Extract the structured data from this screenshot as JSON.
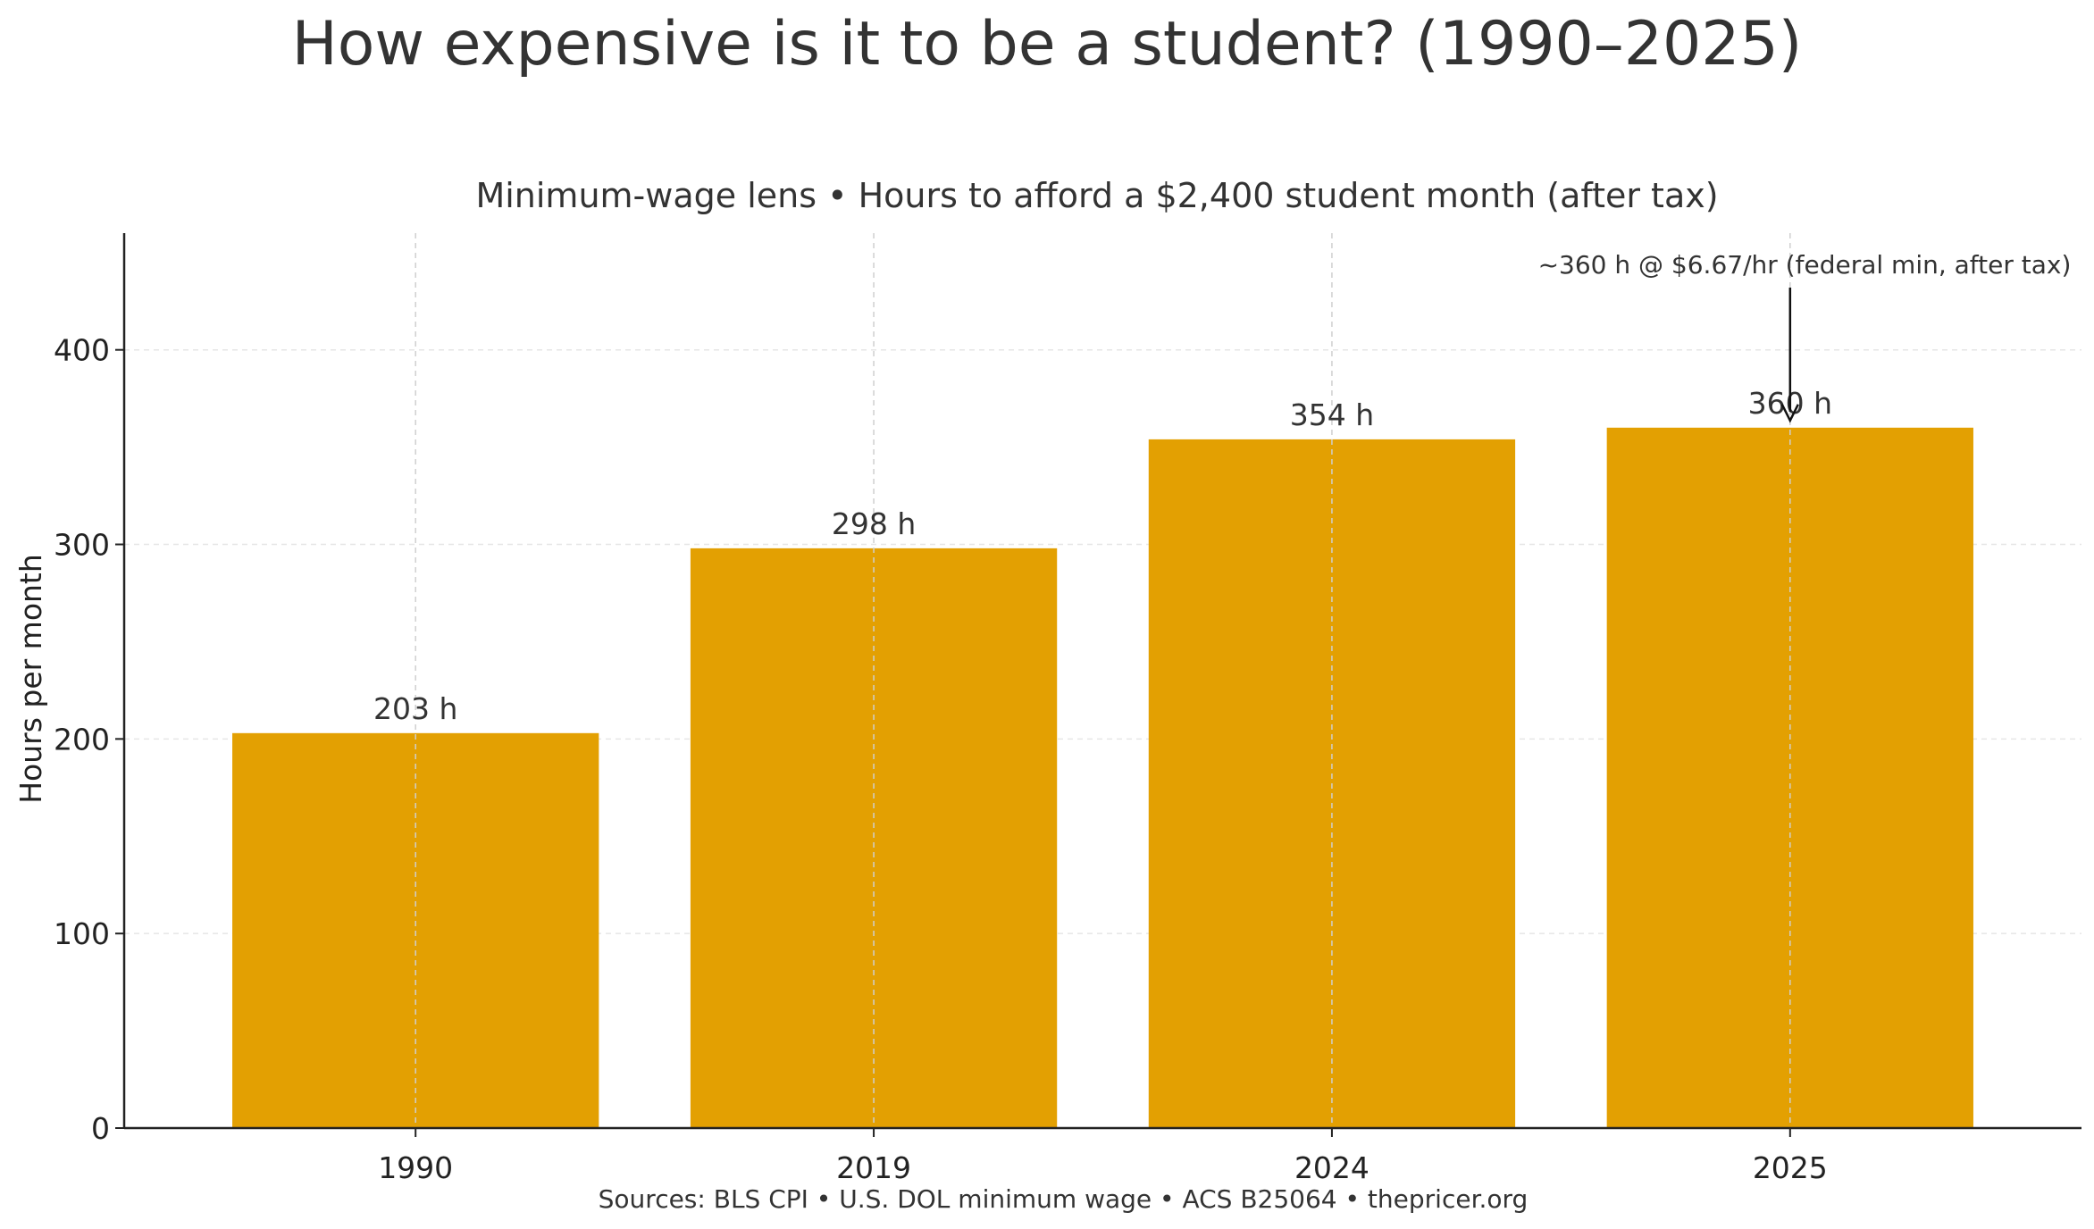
{
  "page": {
    "title": "How expensive is it to be a student? (1990–2025)",
    "sources": "Sources: BLS CPI • U.S. DOL minimum wage • ACS B25064 • thepricer.org"
  },
  "colors": {
    "bar": "#E3A002",
    "axis": "#222222",
    "grid": "#d9d9d9",
    "text": "#333333"
  },
  "chart_data": {
    "type": "bar",
    "title": "Minimum-wage lens • Hours to afford a $2,400 student month (after tax)",
    "xlabel": "",
    "ylabel": "Hours per month",
    "categories": [
      "1990",
      "2019",
      "2024",
      "2025"
    ],
    "values": [
      203,
      298,
      354,
      360
    ],
    "data_labels": [
      "203 h",
      "298 h",
      "354 h",
      "360 h"
    ],
    "ylim": [
      0,
      460
    ],
    "yticks": [
      0,
      100,
      200,
      300,
      400
    ],
    "grid": true,
    "annotation": {
      "text": "~360 h @ $6.67/hr (federal min, after tax)",
      "category": "2025",
      "value": 360
    }
  }
}
